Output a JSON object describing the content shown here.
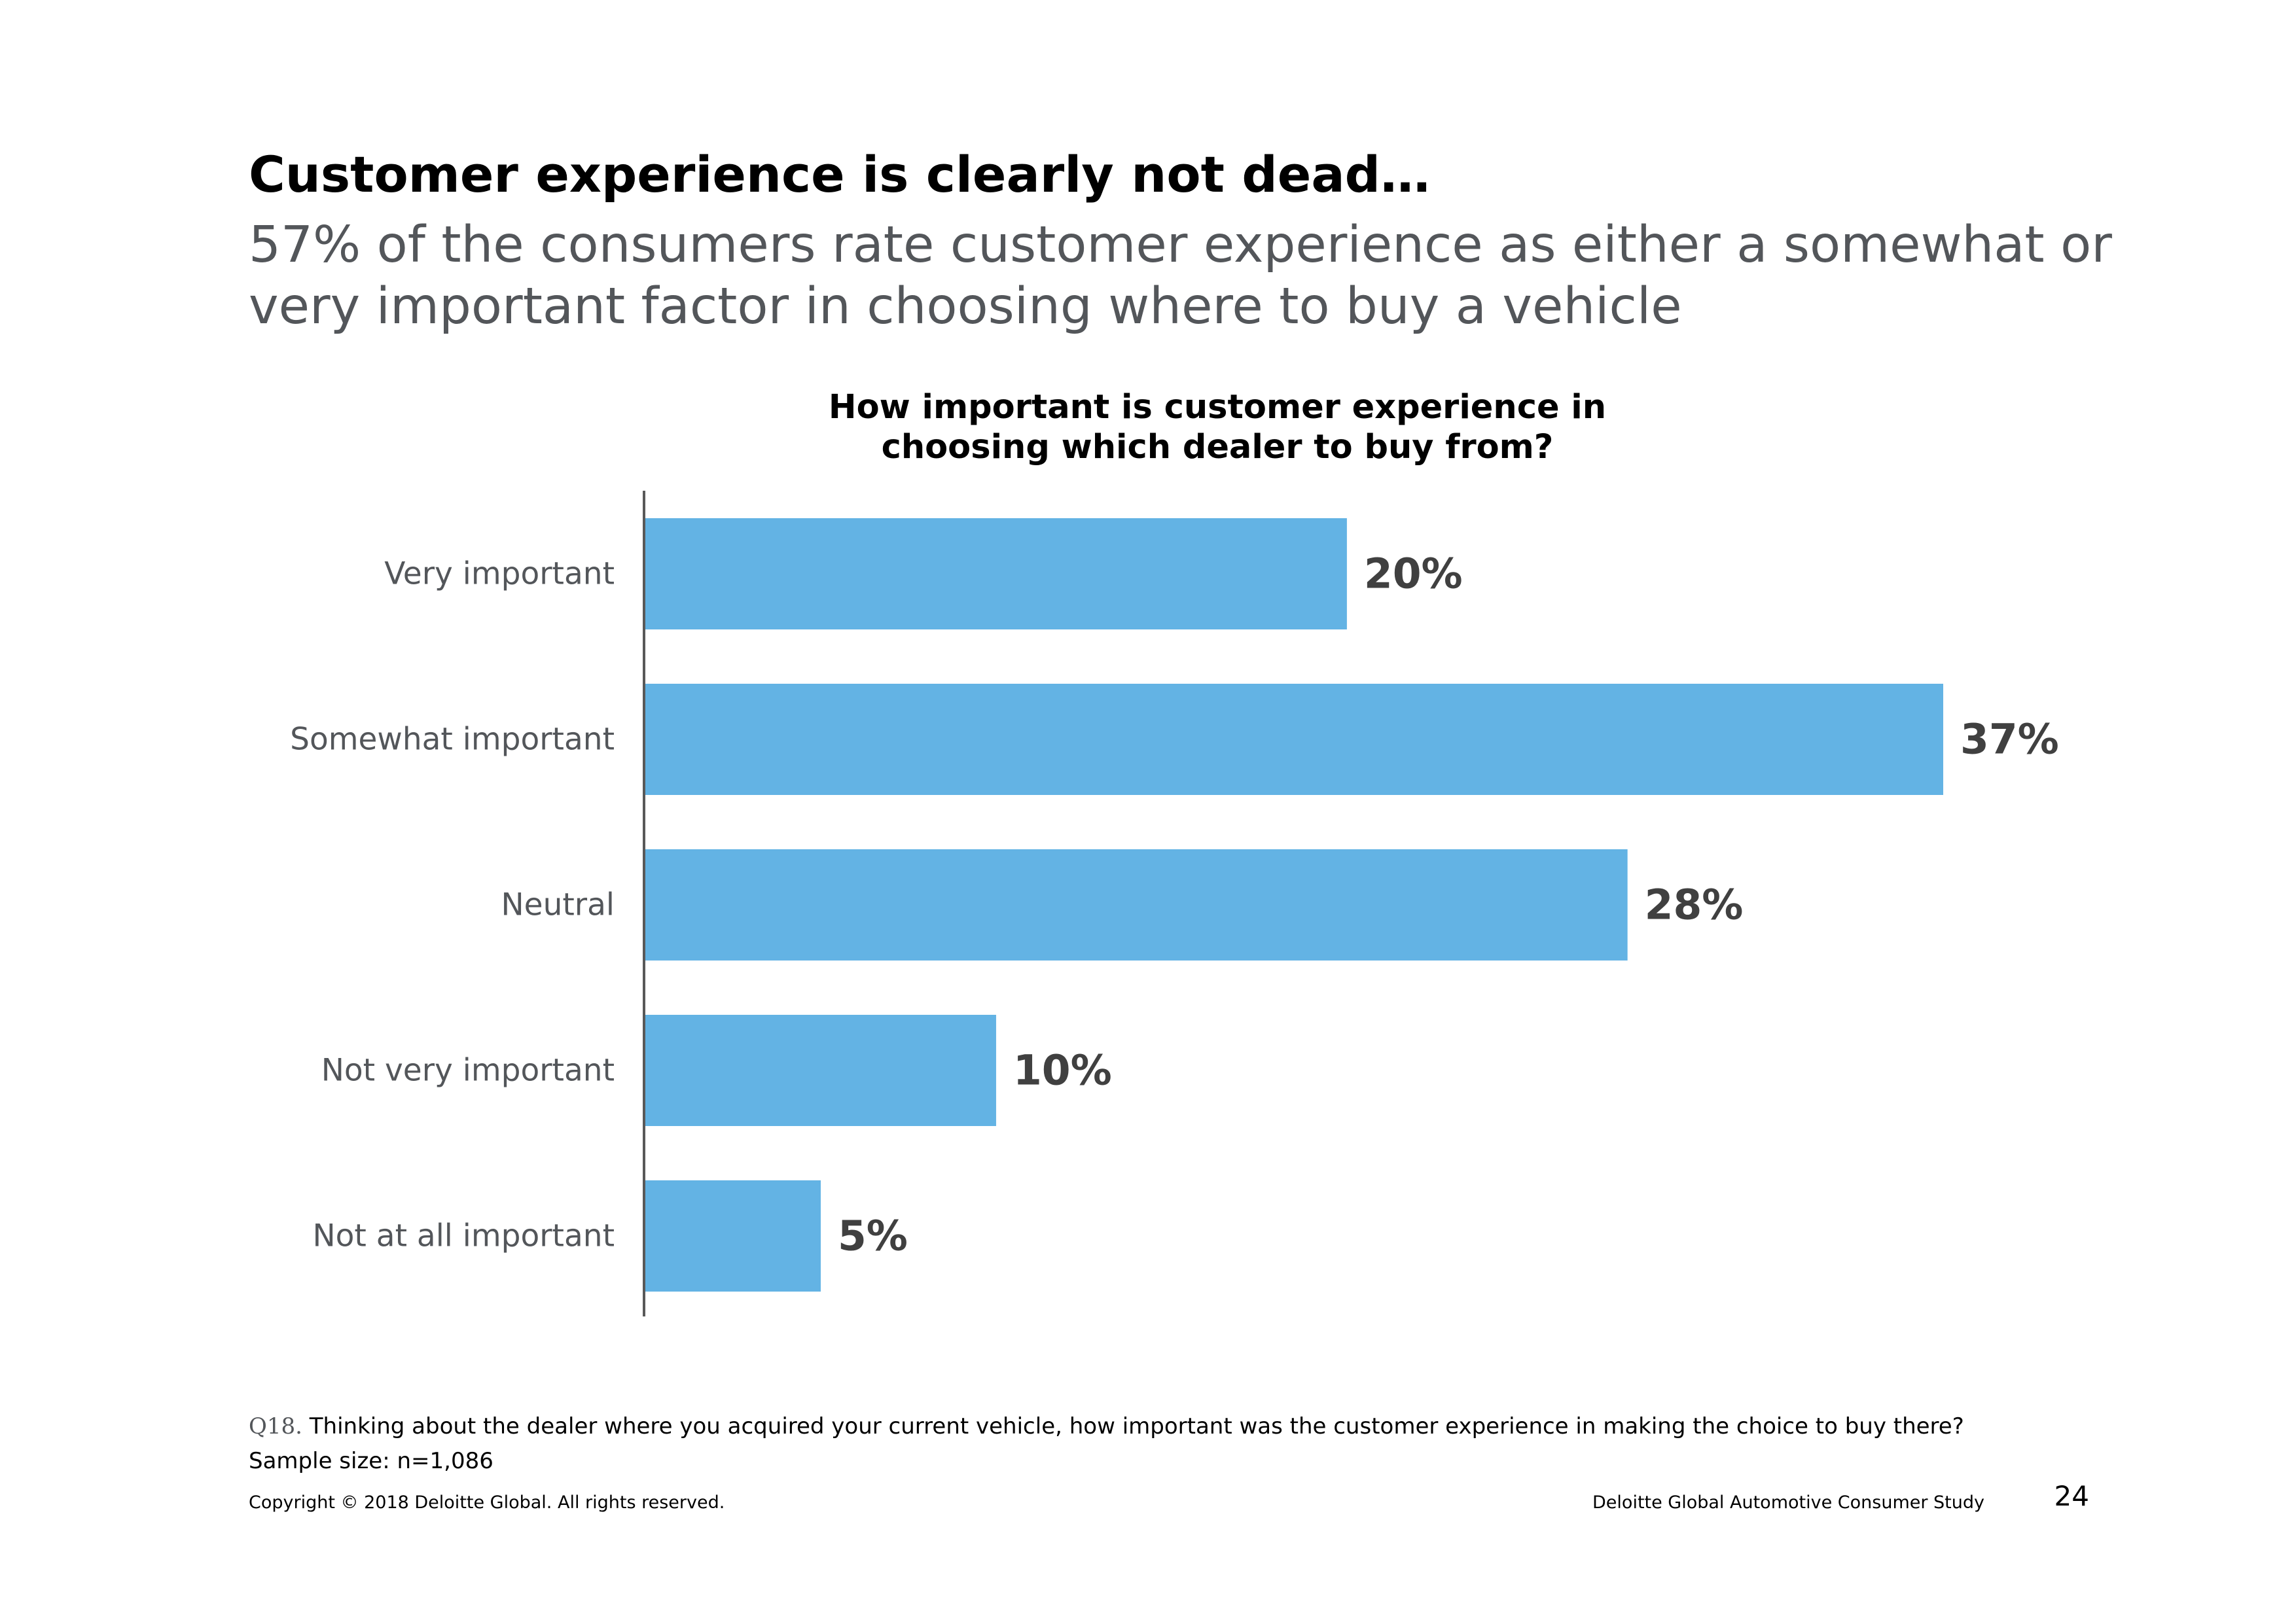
{
  "header": {
    "title": "Customer experience is clearly not dead…",
    "subtitle": "57% of the consumers rate customer experience as either a somewhat or very important factor in choosing where to buy a vehicle"
  },
  "chart_data": {
    "type": "bar",
    "orientation": "horizontal",
    "title_lines": [
      "How important is customer experience in",
      "choosing which dealer to buy from?"
    ],
    "categories": [
      "Very important",
      "Somewhat important",
      "Neutral",
      "Not very important",
      "Not at all important"
    ],
    "values": [
      20,
      37,
      28,
      10,
      5
    ],
    "value_labels": [
      "20%",
      "37%",
      "28%",
      "10%",
      "5%"
    ],
    "unit": "%",
    "xlim": [
      0,
      37
    ],
    "grid": false,
    "legend": "none",
    "colors": {
      "bar": "#63b3e4",
      "axis": "#595959",
      "category_label": "#53565a",
      "value_label": "#404040"
    }
  },
  "footer": {
    "question_code": "Q18.",
    "question_text": " Thinking about the dealer where you acquired your current vehicle, how important was the customer experience in making the choice to buy there?",
    "sample_size": "Sample size: n=1,086",
    "copyright": "Copyright © 2018 Deloitte Global. All rights reserved.",
    "study_name": "Deloitte Global Automotive Consumer Study",
    "page_number": "24"
  }
}
